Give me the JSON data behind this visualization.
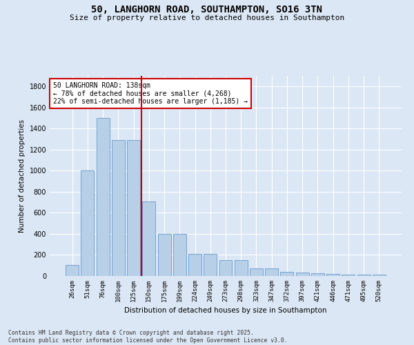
{
  "title_line1": "50, LANGHORN ROAD, SOUTHAMPTON, SO16 3TN",
  "title_line2": "Size of property relative to detached houses in Southampton",
  "xlabel": "Distribution of detached houses by size in Southampton",
  "ylabel": "Number of detached properties",
  "categories": [
    "26sqm",
    "51sqm",
    "76sqm",
    "100sqm",
    "125sqm",
    "150sqm",
    "175sqm",
    "199sqm",
    "224sqm",
    "249sqm",
    "273sqm",
    "298sqm",
    "323sqm",
    "347sqm",
    "372sqm",
    "397sqm",
    "421sqm",
    "446sqm",
    "471sqm",
    "495sqm",
    "520sqm"
  ],
  "values": [
    105,
    1000,
    1500,
    1290,
    1290,
    710,
    400,
    400,
    210,
    210,
    150,
    150,
    70,
    70,
    40,
    30,
    25,
    20,
    15,
    10,
    10
  ],
  "bar_color": "#b8cfe8",
  "bar_edgecolor": "#6699cc",
  "bg_color": "#dce7f5",
  "grid_color": "#c8d8ec",
  "vline_color": "#cc0000",
  "vline_pos": 4.5,
  "annotation_text": "50 LANGHORN ROAD: 138sqm\n← 78% of detached houses are smaller (4,268)\n22% of semi-detached houses are larger (1,185) →",
  "annotation_box_edgecolor": "#cc0000",
  "ylim": [
    0,
    1900
  ],
  "yticks": [
    0,
    200,
    400,
    600,
    800,
    1000,
    1200,
    1400,
    1600,
    1800
  ],
  "fig_bg_color": "#dce7f5",
  "footer_line1": "Contains HM Land Registry data © Crown copyright and database right 2025.",
  "footer_line2": "Contains public sector information licensed under the Open Government Licence v3.0."
}
